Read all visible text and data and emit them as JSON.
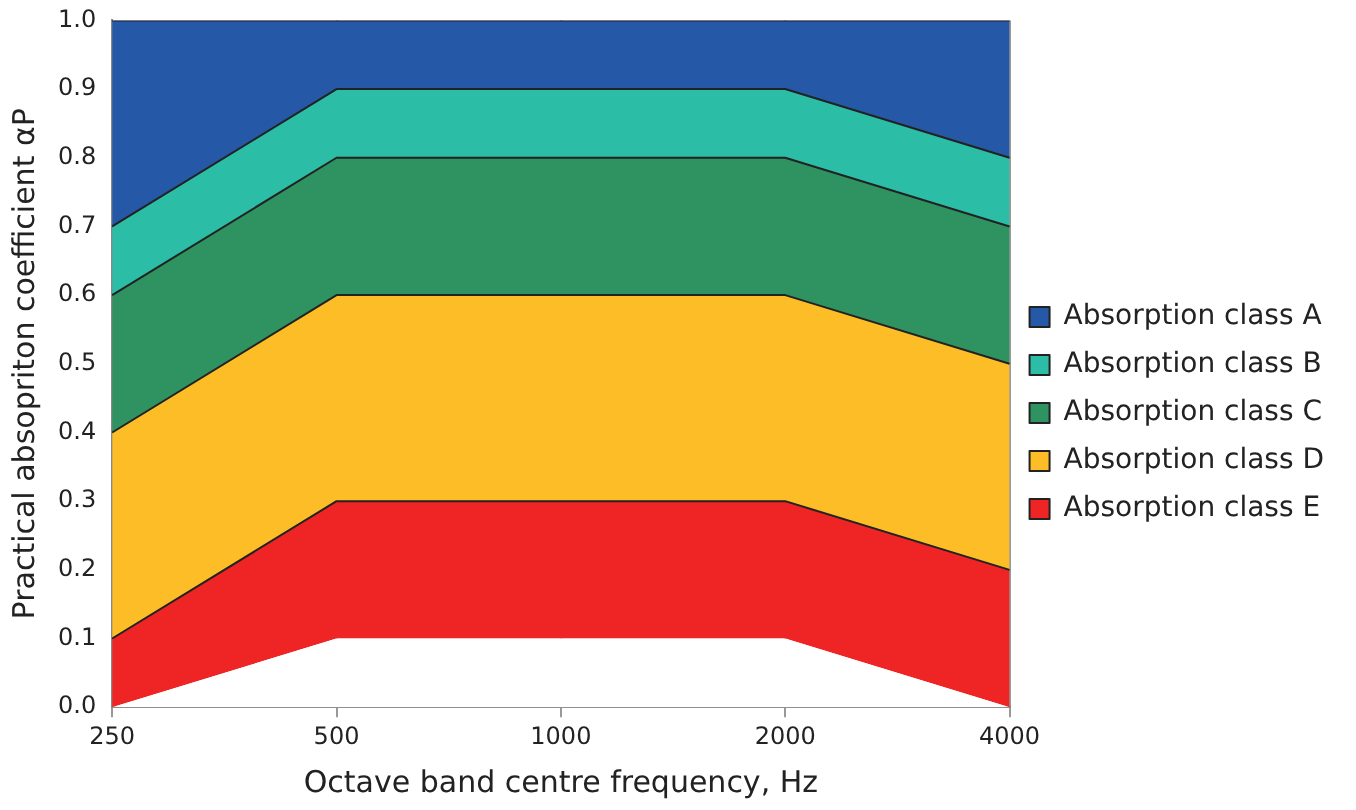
{
  "chart_data": {
    "type": "area",
    "stacked": true,
    "xlabel": "Octave band centre frequency, Hz",
    "ylabel": "Practical absopriton coefficient αP",
    "categories": [
      "250",
      "500",
      "1000",
      "2000",
      "4000"
    ],
    "series": [
      {
        "color": "#ffffff",
        "values": [
          0,
          0.1,
          0.1,
          0.1,
          0
        ]
      },
      {
        "name": "Absorption class E",
        "color": "#ee2524",
        "values": [
          0.1,
          0.2,
          0.2,
          0.2,
          0.2
        ]
      },
      {
        "name": "Absorption class D",
        "color": "#fdbd26",
        "values": [
          0.3,
          0.3,
          0.3,
          0.3,
          0.3
        ]
      },
      {
        "name": "Absorption class C",
        "color": "#2e9360",
        "values": [
          0.2,
          0.2,
          0.2,
          0.2,
          0.2
        ]
      },
      {
        "name": "Absorption class B",
        "color": "#2bbda6",
        "values": [
          0.1,
          0.1,
          0.1,
          0.1,
          0.1
        ]
      },
      {
        "name": "Absorption class A",
        "color": "#2558a6",
        "values": [
          0.3,
          0.1,
          0.1,
          0.1,
          0.2
        ]
      }
    ],
    "ylim": [
      0,
      1
    ],
    "yticks": [
      {
        "value": 0,
        "label": "0.0"
      },
      {
        "value": 0.1,
        "label": "0.1"
      },
      {
        "value": 0.2,
        "label": "0.2"
      },
      {
        "value": 0.3,
        "label": "0.3"
      },
      {
        "value": 0.4,
        "label": "0.4"
      },
      {
        "value": 0.5,
        "label": "0.5"
      },
      {
        "value": 0.6,
        "label": "0.6"
      },
      {
        "value": 0.7,
        "label": "0.7"
      },
      {
        "value": 0.8,
        "label": "0.8"
      },
      {
        "value": 0.9,
        "label": "0.9"
      },
      {
        "value": 1,
        "label": "1.0"
      }
    ],
    "grid": "x",
    "legend": "right"
  }
}
